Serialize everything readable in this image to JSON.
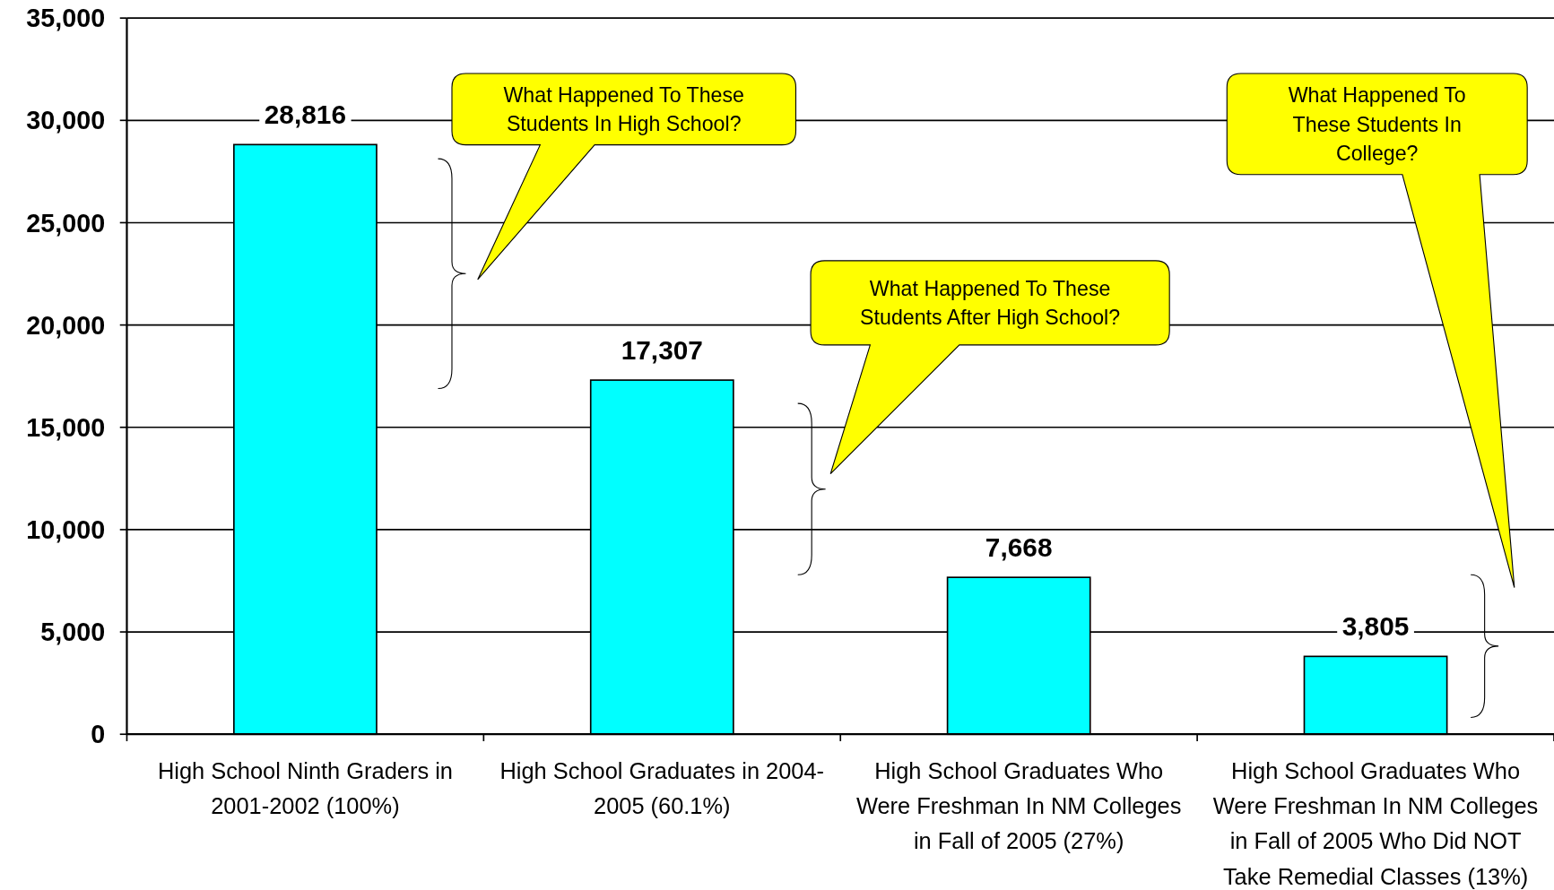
{
  "chart_data": {
    "type": "bar",
    "categories": [
      "High School Ninth Graders in 2001-2002 (100%)",
      "High School Graduates in 2004-2005 (60.1%)",
      "High School Graduates Who Were Freshman In NM Colleges in Fall of 2005 (27%)",
      "High School Graduates Who Were Freshman In NM Colleges in Fall of 2005 Who Did NOT Take Remedial Classes (13%)"
    ],
    "values": [
      28816,
      17307,
      7668,
      3805
    ],
    "color": "#00ffff",
    "value_labels": [
      "28,816",
      "17,307",
      "7,668",
      "3,805"
    ],
    "ylim": [
      0,
      35000
    ],
    "yticks": [
      {
        "value": 0,
        "label": "0"
      },
      {
        "value": 5000,
        "label": "5,000"
      },
      {
        "value": 10000,
        "label": "10,000"
      },
      {
        "value": 15000,
        "label": "15,000"
      },
      {
        "value": 20000,
        "label": "20,000"
      },
      {
        "value": 25000,
        "label": "25,000"
      },
      {
        "value": 30000,
        "label": "30,000"
      },
      {
        "value": 35000,
        "label": "35,000"
      }
    ],
    "grid": "y",
    "annotations": [
      "What Happened To These Students In High School?",
      "What Happened To These Students After High School?",
      "What Happened To These Students In College?"
    ]
  }
}
